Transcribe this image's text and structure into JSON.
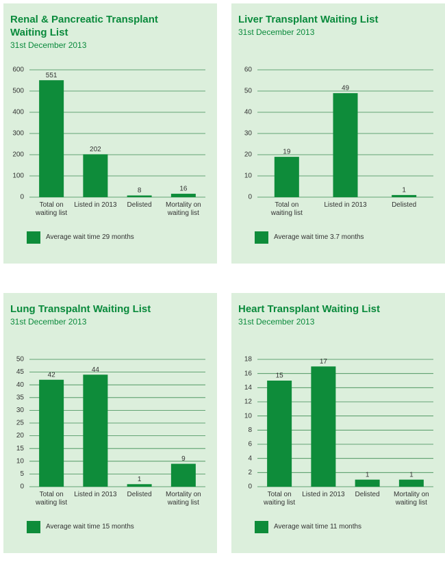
{
  "chart_data": [
    {
      "type": "bar",
      "title": "Renal & Pancreatic Transplant Waiting List",
      "subtitle": "31st December 2013",
      "categories": [
        "Total on waiting list",
        "Listed in 2013",
        "Delisted",
        "Mortality on waiting list"
      ],
      "series": [
        {
          "name": "Average wait time 29 months",
          "color": "#0e8c3a",
          "values": [
            551,
            202,
            8,
            16
          ]
        }
      ],
      "ylim": [
        0,
        600
      ],
      "yticks": [
        0,
        100,
        200,
        300,
        400,
        500,
        600
      ],
      "grid": true
    },
    {
      "type": "bar",
      "title": "Liver Transplant Waiting List",
      "subtitle": "31st December 2013",
      "categories": [
        "Total on waiting list",
        "Listed in 2013",
        "Delisted"
      ],
      "series": [
        {
          "name": "Average wait time 3.7 months",
          "color": "#0e8c3a",
          "values": [
            19,
            49,
            1
          ]
        }
      ],
      "ylim": [
        0,
        60
      ],
      "yticks": [
        0,
        10,
        20,
        30,
        40,
        50,
        60
      ],
      "grid": true
    },
    {
      "type": "bar",
      "title": "Lung Transpalnt Waiting List",
      "subtitle": "31st December 2013",
      "categories": [
        "Total on waiting list",
        "Listed in 2013",
        "Delisted",
        "Mortality on waiting list"
      ],
      "series": [
        {
          "name": "Average wait time 15 months",
          "color": "#0e8c3a",
          "values": [
            42,
            44,
            1,
            9
          ]
        }
      ],
      "ylim": [
        0,
        50
      ],
      "yticks": [
        0,
        5,
        10,
        15,
        20,
        25,
        30,
        35,
        40,
        45,
        50
      ],
      "grid": true
    },
    {
      "type": "bar",
      "title": "Heart Transplant Waiting List",
      "subtitle": "31st December 2013",
      "categories": [
        "Total on waiting list",
        "Listed in 2013",
        "Delisted",
        "Mortality on waiting list"
      ],
      "series": [
        {
          "name": "Average wait time 11 months",
          "color": "#0e8c3a",
          "values": [
            15,
            17,
            1,
            1
          ]
        }
      ],
      "ylim": [
        0,
        18
      ],
      "yticks": [
        0,
        2,
        4,
        6,
        8,
        10,
        12,
        14,
        16,
        18
      ],
      "grid": true
    }
  ]
}
